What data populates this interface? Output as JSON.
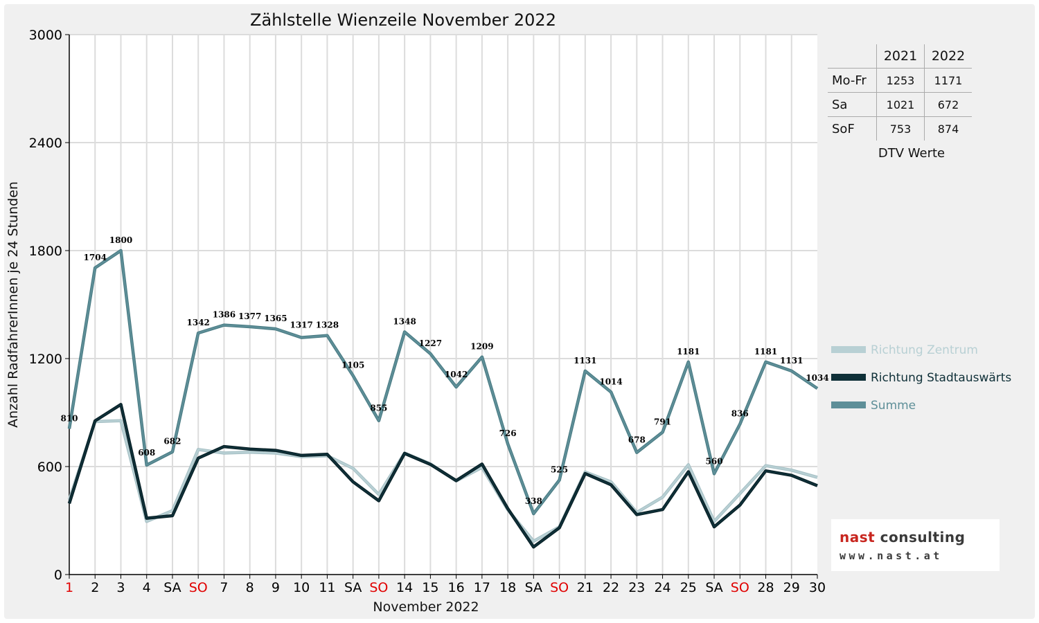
{
  "chart_data": {
    "type": "line",
    "title": "Zählstelle Wienzeile November 2022",
    "xlabel": "November 2022",
    "ylabel": "Anzahl RadfahrerInnen je 24 Stunden",
    "ylim": [
      0,
      3000
    ],
    "yticks": [
      0,
      600,
      1200,
      1800,
      2400,
      3000
    ],
    "grid": true,
    "legend_position": "right",
    "categories": [
      "1",
      "2",
      "3",
      "4",
      "SA",
      "SO",
      "7",
      "8",
      "9",
      "10",
      "11",
      "SA",
      "SO",
      "14",
      "15",
      "16",
      "17",
      "18",
      "SA",
      "SO",
      "21",
      "22",
      "23",
      "24",
      "25",
      "SA",
      "SO",
      "28",
      "29",
      "30"
    ],
    "category_colors": [
      "#e00000",
      "#000000",
      "#000000",
      "#000000",
      "#000000",
      "#e00000",
      "#000000",
      "#000000",
      "#000000",
      "#000000",
      "#000000",
      "#000000",
      "#e00000",
      "#000000",
      "#000000",
      "#000000",
      "#000000",
      "#000000",
      "#000000",
      "#e00000",
      "#000000",
      "#000000",
      "#000000",
      "#000000",
      "#000000",
      "#000000",
      "#e00000",
      "#000000",
      "#000000",
      "#000000"
    ],
    "series": [
      {
        "name": "Richtung Zentrum",
        "color": "#b8d0d4",
        "values": [
          415,
          850,
          855,
          295,
          355,
          695,
          675,
          680,
          675,
          655,
          660,
          590,
          445,
          675,
          615,
          520,
          595,
          360,
          185,
          265,
          570,
          515,
          345,
          430,
          610,
          295,
          450,
          605,
          580,
          540
        ]
      },
      {
        "name": "Richtung Stadtauswärts",
        "color": "#0f3038",
        "values": [
          395,
          854,
          945,
          313,
          327,
          647,
          711,
          697,
          690,
          662,
          668,
          515,
          410,
          673,
          612,
          522,
          614,
          366,
          153,
          260,
          561,
          499,
          333,
          361,
          571,
          265,
          386,
          576,
          551,
          494
        ]
      },
      {
        "name": "Summe",
        "color": "#5e8f98",
        "values": [
          810,
          1704,
          1800,
          608,
          682,
          1342,
          1386,
          1377,
          1365,
          1317,
          1328,
          1105,
          855,
          1348,
          1227,
          1042,
          1209,
          726,
          338,
          525,
          1131,
          1014,
          678,
          791,
          1181,
          560,
          836,
          1181,
          1131,
          1034
        ],
        "data_labels": [
          "810",
          "1704",
          "1800",
          "608",
          "682",
          "1342",
          "1386",
          "1377",
          "1365",
          "1317",
          "1328",
          "1105",
          "855",
          "1348",
          "1227",
          "1042",
          "1209",
          "726",
          "338",
          "525",
          "1131",
          "1014",
          "678",
          "791",
          "1181",
          "560",
          "836",
          "1181",
          "1131",
          "1034"
        ]
      }
    ]
  },
  "dtv_table": {
    "caption": "DTV Werte",
    "columns": [
      "2021",
      "2022"
    ],
    "rows": [
      {
        "label": "Mo-Fr",
        "v2021": "1253",
        "v2022": "1171"
      },
      {
        "label": "Sa",
        "v2021": "1021",
        "v2022": "672"
      },
      {
        "label": "SoF",
        "v2021": "753",
        "v2022": "874"
      }
    ]
  },
  "logo": {
    "brand_part1": "nast",
    "brand_part2": " consulting",
    "url": "www.nast.at"
  }
}
